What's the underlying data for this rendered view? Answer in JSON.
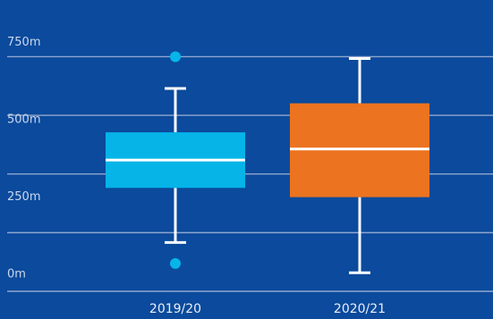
{
  "chart_data": {
    "type": "box",
    "y_unit": "m",
    "ylim": [
      -60,
      820
    ],
    "gridlines": [
      -60,
      130,
      320,
      510,
      700
    ],
    "yticks": [
      {
        "value": 0,
        "label": "0m"
      },
      {
        "value": 250,
        "label": "250m"
      },
      {
        "value": 500,
        "label": "500m"
      },
      {
        "value": 750,
        "label": "750m"
      }
    ],
    "categories": [
      "2019/20",
      "2020/21"
    ],
    "boxes": [
      {
        "category": "2019/20",
        "whisker_low": 98,
        "q1": 275,
        "median": 365,
        "q3": 455,
        "whisker_high": 597,
        "outliers": [
          30,
          700
        ],
        "color": "#06b4e8"
      },
      {
        "category": "2020/21",
        "whisker_low": 0,
        "q1": 245,
        "median": 401,
        "q3": 549,
        "whisker_high": 694,
        "outliers": [],
        "color": "#ec7320"
      }
    ],
    "grid": true,
    "legend": "none",
    "colors": {
      "background": "#0b4a9c",
      "grid": "#8fa6cf",
      "whisker": "#ffffff",
      "median": "#ffffff"
    }
  }
}
